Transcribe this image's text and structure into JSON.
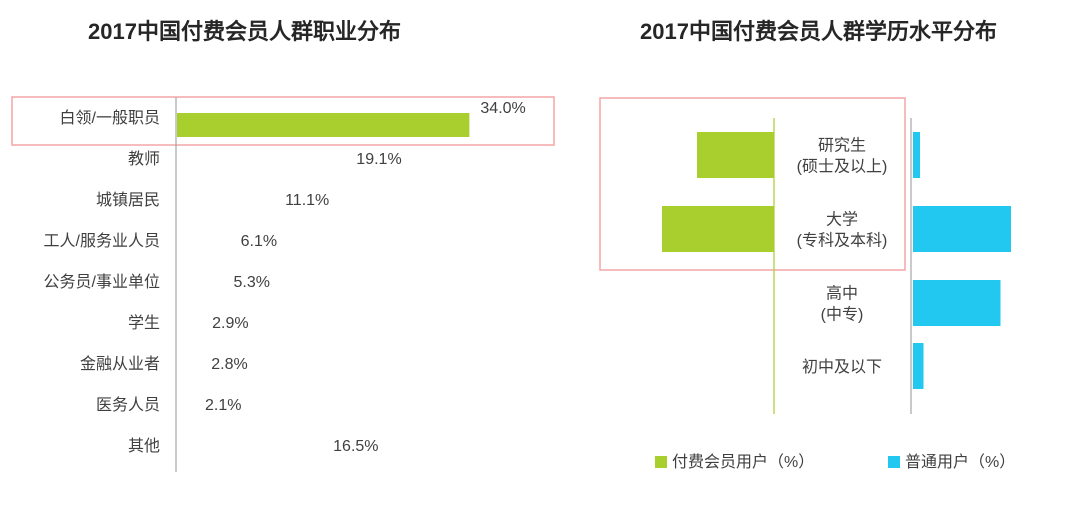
{
  "chart_data": [
    {
      "type": "bar",
      "title": "2017中国付费会员人群职业分布",
      "categories": [
        "白领/一般职员",
        "教师",
        "城镇居民",
        "工人/服务业人员",
        "公务员/事业单位",
        "学生",
        "金融从业者",
        "医务人员",
        "其他"
      ],
      "values": [
        34.0,
        19.1,
        11.1,
        6.1,
        5.3,
        2.9,
        2.8,
        2.1,
        16.5
      ],
      "value_labels": [
        "34.0%",
        "19.1%",
        "11.1%",
        "6.1%",
        "5.3%",
        "2.9%",
        "2.8%",
        "2.1%",
        "16.5%"
      ],
      "bar_drawn": [
        true,
        false,
        false,
        false,
        false,
        false,
        false,
        false,
        false
      ],
      "orientation": "horizontal",
      "highlight": "白领/一般职员",
      "colors": {
        "bar": "#a9cf2f",
        "highlight_box": "#f4a6a6",
        "axis": "#a6a6a6"
      }
    },
    {
      "type": "bar",
      "title": "2017中国付费会员人群学历水平分布",
      "orientation": "horizontal-butterfly",
      "categories": [
        [
          "研究生",
          "(硕士及以上)"
        ],
        [
          "大学",
          "(专科及本科)"
        ],
        [
          "高中",
          "(中专)"
        ],
        [
          "初中及以下"
        ]
      ],
      "series": [
        {
          "name": "付费会员用户（%）",
          "values": [
            11,
            16,
            0,
            0
          ],
          "color": "#a9cf2f"
        },
        {
          "name": "普通用户（%）",
          "values": [
            1,
            14,
            12.5,
            1.5
          ],
          "color": "#22c8f0"
        }
      ],
      "legend": "bottom",
      "highlight": [
        "研究生",
        "大学"
      ],
      "colors": {
        "highlight_box": "#f4a6a6",
        "axis_left": "#a9cf2f",
        "axis_right": "#a6a6a6"
      }
    }
  ]
}
